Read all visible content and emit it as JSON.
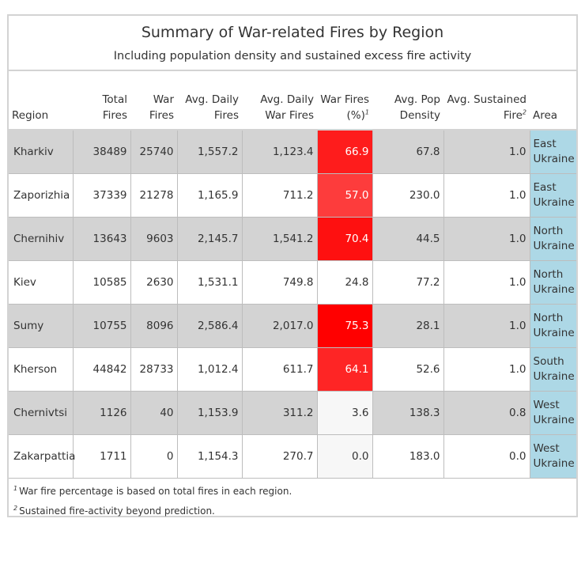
{
  "title": "Summary of War-related Fires by Region",
  "subtitle": "Including population density and sustained excess fire activity",
  "columns": {
    "region": "Region",
    "total_fires": "Total Fires",
    "war_fires": "War Fires",
    "avg_daily_fires": "Avg. Daily Fires",
    "avg_daily_war_fires": "Avg. Daily War Fires",
    "war_fires_pct": "War Fires (%)",
    "war_fires_pct_note": "1",
    "avg_pop_density": "Avg. Pop Density",
    "avg_sustained_fire": "Avg. Sustained Fire",
    "avg_sustained_fire_note": "2",
    "area": "Area"
  },
  "colors": {
    "row_shade": "#d3d3d3",
    "area_cell": "#add8e6",
    "heat_high": "#ff0000",
    "heat_low": "#f7f7f7"
  },
  "rows": [
    {
      "region": "Kharkiv",
      "total_fires": "38489",
      "war_fires": "25740",
      "avg_daily_fires": "1,557.2",
      "avg_daily_war_fires": "1,123.4",
      "war_pct": "66.9",
      "war_pct_value": 66.9,
      "pop_density": "67.8",
      "sustained": "1.0",
      "area": "East Ukraine",
      "shaded": true
    },
    {
      "region": "Zaporizhia",
      "total_fires": "37339",
      "war_fires": "21278",
      "avg_daily_fires": "1,165.9",
      "avg_daily_war_fires": "711.2",
      "war_pct": "57.0",
      "war_pct_value": 57.0,
      "pop_density": "230.0",
      "sustained": "1.0",
      "area": "East Ukraine",
      "shaded": false
    },
    {
      "region": "Chernihiv",
      "total_fires": "13643",
      "war_fires": "9603",
      "avg_daily_fires": "2,145.7",
      "avg_daily_war_fires": "1,541.2",
      "war_pct": "70.4",
      "war_pct_value": 70.4,
      "pop_density": "44.5",
      "sustained": "1.0",
      "area": "North Ukraine",
      "shaded": true
    },
    {
      "region": "Kiev",
      "total_fires": "10585",
      "war_fires": "2630",
      "avg_daily_fires": "1,531.1",
      "avg_daily_war_fires": "749.8",
      "war_pct": "24.8",
      "war_pct_value": 24.8,
      "pop_density": "77.2",
      "sustained": "1.0",
      "area": "North Ukraine",
      "shaded": false
    },
    {
      "region": "Sumy",
      "total_fires": "10755",
      "war_fires": "8096",
      "avg_daily_fires": "2,586.4",
      "avg_daily_war_fires": "2,017.0",
      "war_pct": "75.3",
      "war_pct_value": 75.3,
      "pop_density": "28.1",
      "sustained": "1.0",
      "area": "North Ukraine",
      "shaded": true
    },
    {
      "region": "Kherson",
      "total_fires": "44842",
      "war_fires": "28733",
      "avg_daily_fires": "1,012.4",
      "avg_daily_war_fires": "611.7",
      "war_pct": "64.1",
      "war_pct_value": 64.1,
      "pop_density": "52.6",
      "sustained": "1.0",
      "area": "South Ukraine",
      "shaded": false
    },
    {
      "region": "Chernivtsi",
      "total_fires": "1126",
      "war_fires": "40",
      "avg_daily_fires": "1,153.9",
      "avg_daily_war_fires": "311.2",
      "war_pct": "3.6",
      "war_pct_value": 3.6,
      "pop_density": "138.3",
      "sustained": "0.8",
      "area": "West Ukraine",
      "shaded": true
    },
    {
      "region": "Zakarpattia",
      "total_fires": "1711",
      "war_fires": "0",
      "avg_daily_fires": "1,154.3",
      "avg_daily_war_fires": "270.7",
      "war_pct": "0.0",
      "war_pct_value": 0.0,
      "pop_density": "183.0",
      "sustained": "0.0",
      "area": "West Ukraine",
      "shaded": false
    }
  ],
  "footnotes": [
    {
      "mark": "1",
      "text": "War fire percentage is based on total fires in each region."
    },
    {
      "mark": "2",
      "text": "Sustained fire-activity beyond prediction."
    }
  ]
}
